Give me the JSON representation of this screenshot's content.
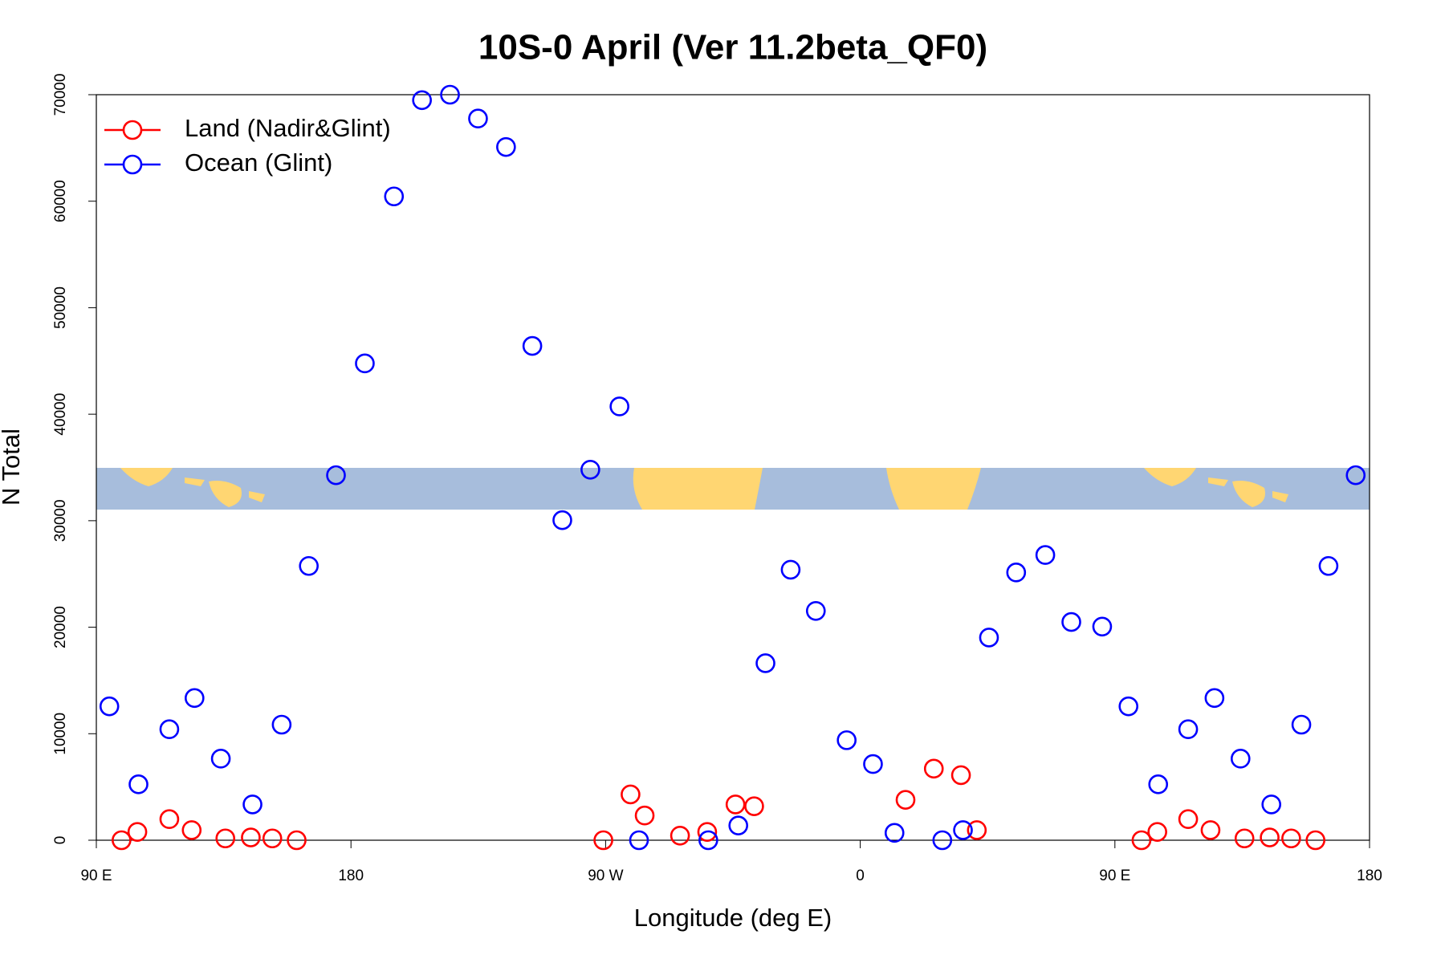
{
  "chart_data": {
    "type": "scatter",
    "title": "10S-0 April (Ver 11.2beta_QF0)",
    "x_label": "Longitude (deg E)",
    "y_label": "N Total",
    "xlim": [
      90,
      540
    ],
    "ylim": [
      0,
      70000
    ],
    "xticks": [
      {
        "value": 90,
        "label": "90 E"
      },
      180,
      {
        "value": 270,
        "label": "90 W"
      },
      {
        "value": 360,
        "label": "0"
      },
      {
        "value": 450,
        "label": "90 E"
      },
      {
        "value": 540,
        "label": "180"
      }
    ],
    "yticks": [
      0,
      10000,
      20000,
      30000,
      40000,
      50000,
      60000,
      70000
    ],
    "legend": "top-left",
    "series": [
      {
        "name": "Land (Nadir&Glint)",
        "color": "#ff0000",
        "x": [
          98.9,
          104.5,
          115.8,
          123.7,
          135.6,
          144.6,
          152.2,
          160.8,
          269.2,
          278.8,
          283.8,
          296.3,
          305.9,
          315.9,
          322.5,
          376,
          386,
          395.6,
          401.2,
          459.4,
          465,
          475.9,
          483.8,
          495.8,
          504.7,
          512.3,
          520.9
        ],
        "values": [
          0,
          780,
          1980,
          950,
          170,
          260,
          170,
          0,
          0,
          4300,
          2320,
          430,
          780,
          3360,
          3190,
          3790,
          6720,
          6110,
          950,
          0,
          780,
          1980,
          950,
          170,
          260,
          170,
          0
        ]
      },
      {
        "name": "Ocean (Glint)",
        "color": "#0000ff",
        "x": [
          94.6,
          104.9,
          115.8,
          124.7,
          134,
          145.2,
          155.5,
          165.1,
          174.7,
          184.9,
          195.2,
          205.1,
          215,
          224.9,
          234.8,
          244.1,
          254.7,
          264.6,
          274.9,
          281.8,
          306.3,
          316.9,
          326.5,
          335.4,
          344.3,
          355.2,
          364.5,
          372.1,
          389,
          396.3,
          405.5,
          415.1,
          425.4,
          434.6,
          445.5,
          454.8,
          465.3,
          475.9,
          485.2,
          494.4,
          505.3,
          515.9,
          525.5,
          535.1
        ],
        "values": [
          12570,
          5250,
          10420,
          13350,
          7660,
          3360,
          10850,
          25750,
          34270,
          44770,
          60450,
          69490,
          70000,
          67760,
          65090,
          46410,
          30050,
          34790,
          40730,
          0,
          0,
          1380,
          16620,
          25400,
          21530,
          9390,
          7150,
          690,
          0,
          950,
          19030,
          25140,
          26780,
          20490,
          20060,
          12570,
          5250,
          10420,
          13350,
          7660,
          3360,
          10850,
          25750,
          34270
        ]
      }
    ]
  }
}
